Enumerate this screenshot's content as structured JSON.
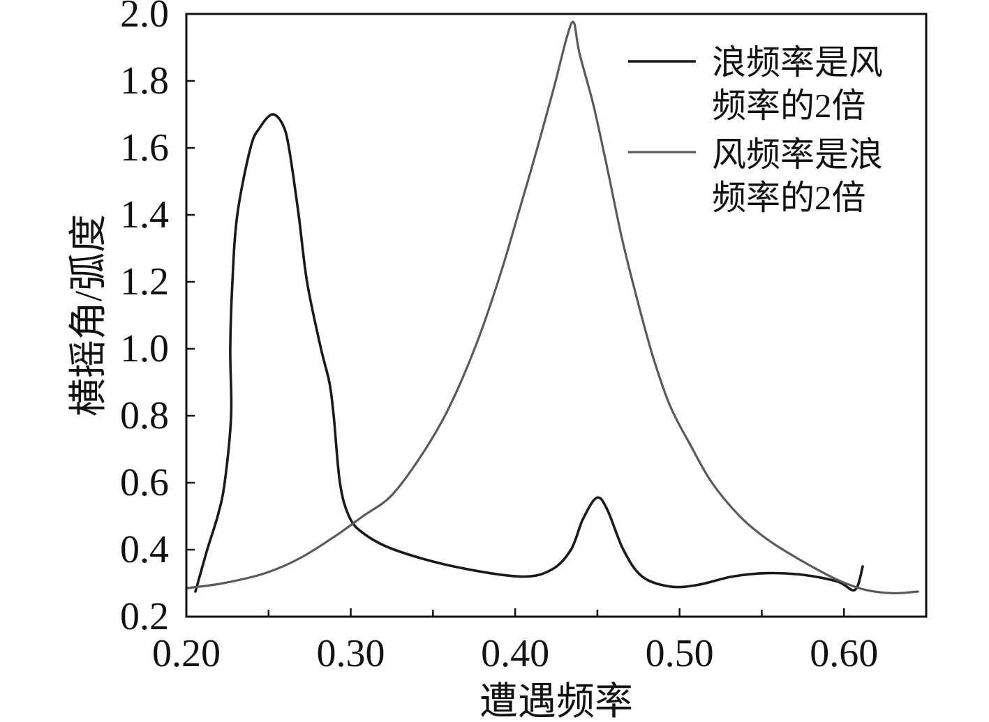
{
  "chart_data": {
    "type": "line",
    "xlabel": "遭遇频率",
    "ylabel": "横摇角/弧度",
    "xlim": [
      0.2,
      0.65
    ],
    "ylim": [
      0.2,
      2.0
    ],
    "x_ticks": [
      0.2,
      0.3,
      0.4,
      0.5,
      0.6
    ],
    "x_tick_labels": [
      "0.20",
      "0.30",
      "0.40",
      "0.50",
      "0.60"
    ],
    "x_minor_ticks": [
      0.25,
      0.35,
      0.45,
      0.55
    ],
    "y_ticks": [
      0.2,
      0.4,
      0.6,
      0.8,
      1.0,
      1.2,
      1.4,
      1.6,
      1.8,
      2.0
    ],
    "y_tick_labels": [
      "0.2",
      "0.4",
      "0.6",
      "0.8",
      "1.0",
      "1.2",
      "1.4",
      "1.6",
      "1.8",
      "2.0"
    ],
    "grid": false,
    "legend": {
      "position": "top-right"
    },
    "series": [
      {
        "name": "浪频率是风频率的2倍",
        "color": "#1a1a1a",
        "x": [
          0.2055,
          0.2127,
          0.219,
          0.2233,
          0.2272,
          0.2267,
          0.228,
          0.231,
          0.239,
          0.2446,
          0.2522,
          0.2586,
          0.2624,
          0.2683,
          0.2734,
          0.2819,
          0.287,
          0.2896,
          0.2934,
          0.2989,
          0.3074,
          0.3265,
          0.3626,
          0.4029,
          0.422,
          0.4339,
          0.4411,
          0.4496,
          0.456,
          0.4658,
          0.4772,
          0.4942,
          0.5112,
          0.5324,
          0.5536,
          0.5749,
          0.5961,
          0.6067,
          0.6114
        ],
        "y": [
          0.275,
          0.4,
          0.5,
          0.6,
          0.8,
          1.0,
          1.2,
          1.4,
          1.6,
          1.66,
          1.7,
          1.67,
          1.6,
          1.4,
          1.2,
          1.0,
          0.9,
          0.8,
          0.6,
          0.5,
          0.45,
          0.4,
          0.35,
          0.32,
          0.34,
          0.4,
          0.49,
          0.555,
          0.52,
          0.4,
          0.32,
          0.29,
          0.295,
          0.32,
          0.33,
          0.325,
          0.305,
          0.28,
          0.35
        ]
      },
      {
        "name": "风频率是浪频率的2倍",
        "color": "#5a5a5a",
        "x": [
          0.2,
          0.2225,
          0.248,
          0.2692,
          0.2904,
          0.3074,
          0.3244,
          0.3414,
          0.3583,
          0.3753,
          0.3902,
          0.4029,
          0.4135,
          0.4241,
          0.4314,
          0.4356,
          0.439,
          0.4475,
          0.456,
          0.4645,
          0.473,
          0.4836,
          0.4942,
          0.5069,
          0.5197,
          0.5366,
          0.5536,
          0.5749,
          0.5961,
          0.6131,
          0.63,
          0.6449
        ],
        "y": [
          0.285,
          0.3,
          0.33,
          0.375,
          0.44,
          0.5,
          0.56,
          0.67,
          0.81,
          1.0,
          1.21,
          1.42,
          1.6,
          1.79,
          1.93,
          1.975,
          1.885,
          1.73,
          1.54,
          1.34,
          1.17,
          0.98,
          0.83,
          0.71,
          0.6,
          0.5,
          0.43,
          0.365,
          0.31,
          0.28,
          0.27,
          0.275
        ]
      }
    ]
  }
}
